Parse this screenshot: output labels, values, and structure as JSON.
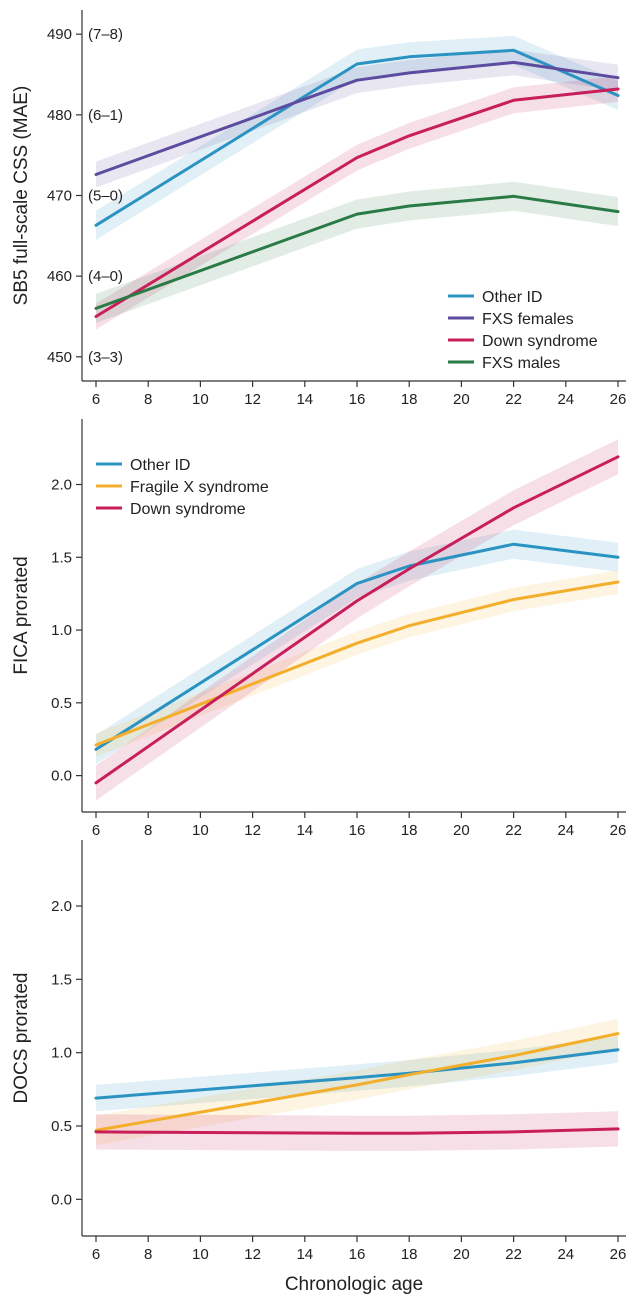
{
  "chart_data": [
    {
      "type": "line",
      "ylabel": "SB5 full-scale CSS (MAE)",
      "xlim": [
        6,
        26
      ],
      "ylim": [
        447,
        493
      ],
      "xticks": [
        "6",
        "8",
        "10",
        "12",
        "14",
        "16",
        "18",
        "20",
        "22",
        "24",
        "26"
      ],
      "yticks": [
        {
          "value": 450,
          "label": "450",
          "mae": "(3–3)"
        },
        {
          "value": 460,
          "label": "460",
          "mae": "(4–0)"
        },
        {
          "value": 470,
          "label": "470",
          "mae": "(5–0)"
        },
        {
          "value": 480,
          "label": "480",
          "mae": "(6–1)"
        },
        {
          "value": 490,
          "label": "490",
          "mae": "(7–8)"
        }
      ],
      "legend": "lower-right",
      "x": [
        6,
        16,
        18,
        22,
        26
      ],
      "series": [
        {
          "name": "Other ID",
          "color": "#2b93c2",
          "values": [
            466.3,
            486.3,
            487.2,
            488.0,
            482.4
          ],
          "band": 1.8
        },
        {
          "name": "FXS females",
          "color": "#5c4b9f",
          "values": [
            472.6,
            484.3,
            485.2,
            486.5,
            484.6
          ],
          "band": 1.6
        },
        {
          "name": "Down syndrome",
          "color": "#c81e5a",
          "values": [
            455.0,
            474.7,
            477.4,
            481.8,
            483.2
          ],
          "band": 1.6
        },
        {
          "name": "FXS males",
          "color": "#2a7a46",
          "values": [
            456.0,
            467.7,
            468.7,
            469.9,
            468.0
          ],
          "band": 1.8
        }
      ]
    },
    {
      "type": "line",
      "ylabel": "FICA prorated",
      "xlim": [
        6,
        26
      ],
      "ylim": [
        -0.25,
        2.45
      ],
      "xticks": [
        "6",
        "8",
        "10",
        "12",
        "14",
        "16",
        "18",
        "20",
        "22",
        "24",
        "26"
      ],
      "yticks": [
        {
          "value": 0.0,
          "label": "0.0"
        },
        {
          "value": 0.5,
          "label": "0.5"
        },
        {
          "value": 1.0,
          "label": "1.0"
        },
        {
          "value": 1.5,
          "label": "1.5"
        },
        {
          "value": 2.0,
          "label": "2.0"
        }
      ],
      "legend": "top-left",
      "x": [
        6,
        16,
        18,
        22,
        26
      ],
      "series": [
        {
          "name": "Other ID",
          "color": "#2b93c2",
          "values": [
            0.18,
            1.32,
            1.44,
            1.59,
            1.5
          ],
          "band": 0.1
        },
        {
          "name": "Fragile X syndrome",
          "color": "#f3ae2b",
          "values": [
            0.21,
            0.91,
            1.03,
            1.21,
            1.33
          ],
          "band": 0.08
        },
        {
          "name": "Down syndrome",
          "color": "#c81e5a",
          "values": [
            -0.05,
            1.2,
            1.42,
            1.84,
            2.19
          ],
          "band": 0.12
        }
      ]
    },
    {
      "type": "line",
      "ylabel": "DOCS prorated",
      "xlabel": "Chronologic age",
      "xlim": [
        6,
        26
      ],
      "ylim": [
        -0.25,
        2.45
      ],
      "xticks": [
        "6",
        "8",
        "10",
        "12",
        "14",
        "16",
        "18",
        "20",
        "22",
        "24",
        "26"
      ],
      "yticks": [
        {
          "value": 0.0,
          "label": "0.0"
        },
        {
          "value": 0.5,
          "label": "0.5"
        },
        {
          "value": 1.0,
          "label": "1.0"
        },
        {
          "value": 1.5,
          "label": "1.5"
        },
        {
          "value": 2.0,
          "label": "2.0"
        }
      ],
      "x": [
        6,
        16,
        18,
        22,
        26
      ],
      "series": [
        {
          "color": "#2b93c2",
          "values": [
            0.69,
            0.83,
            0.86,
            0.93,
            1.02
          ],
          "band": 0.09
        },
        {
          "color": "#f3ae2b",
          "values": [
            0.47,
            0.78,
            0.85,
            0.98,
            1.13
          ],
          "band": 0.1
        },
        {
          "color": "#c81e5a",
          "values": [
            0.46,
            0.45,
            0.45,
            0.46,
            0.48
          ],
          "band": 0.12
        }
      ]
    }
  ]
}
